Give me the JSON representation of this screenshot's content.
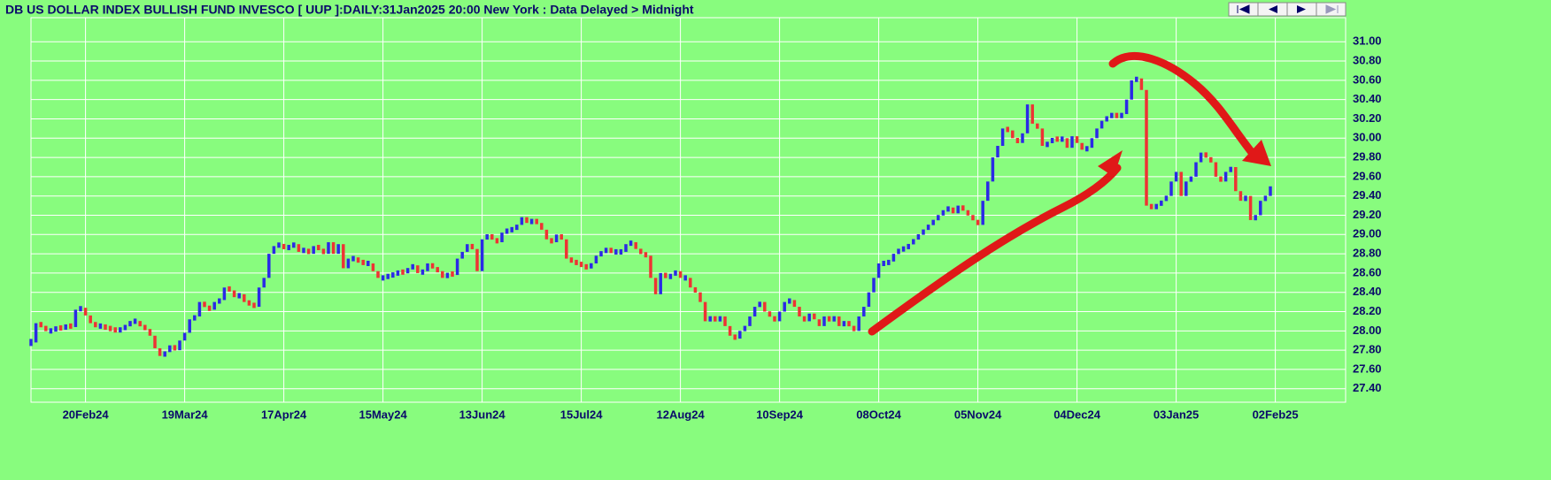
{
  "chart_data": {
    "type": "ohlc",
    "title": "DB US DOLLAR INDEX BULLISH FUND INVESCO [ UUP ]:DAILY:31Jan2025 20:00 New York : Data Delayed > Midnight",
    "categories": [
      null,
      null,
      null,
      null,
      null,
      null,
      null,
      null,
      null,
      null,
      null,
      "20Feb24",
      null,
      null,
      null,
      null,
      null,
      null,
      null,
      null,
      null,
      null,
      null,
      null,
      null,
      null,
      null,
      null,
      null,
      null,
      null,
      "19Mar24",
      null,
      null,
      null,
      null,
      null,
      null,
      null,
      null,
      null,
      null,
      null,
      null,
      null,
      null,
      null,
      null,
      null,
      null,
      null,
      "17Apr24",
      null,
      null,
      null,
      null,
      null,
      null,
      null,
      null,
      null,
      null,
      null,
      null,
      null,
      null,
      null,
      null,
      null,
      null,
      null,
      "15May24",
      null,
      null,
      null,
      null,
      null,
      null,
      null,
      null,
      null,
      null,
      null,
      null,
      null,
      null,
      null,
      null,
      null,
      null,
      null,
      "13Jun24",
      null,
      null,
      null,
      null,
      null,
      null,
      null,
      null,
      null,
      null,
      null,
      null,
      null,
      null,
      null,
      null,
      null,
      null,
      null,
      "15Jul24",
      null,
      null,
      null,
      null,
      null,
      null,
      null,
      null,
      null,
      null,
      null,
      null,
      null,
      null,
      null,
      null,
      null,
      null,
      null,
      "12Aug24",
      null,
      null,
      null,
      null,
      null,
      null,
      null,
      null,
      null,
      null,
      null,
      null,
      null,
      null,
      null,
      null,
      null,
      null,
      null,
      "10Sep24",
      null,
      null,
      null,
      null,
      null,
      null,
      null,
      null,
      null,
      null,
      null,
      null,
      null,
      null,
      null,
      null,
      null,
      null,
      null,
      "08Oct24",
      null,
      null,
      null,
      null,
      null,
      null,
      null,
      null,
      null,
      null,
      null,
      null,
      null,
      null,
      null,
      null,
      null,
      null,
      null,
      "05Nov24",
      null,
      null,
      null,
      null,
      null,
      null,
      null,
      null,
      null,
      null,
      null,
      null,
      null,
      null,
      null,
      null,
      null,
      null,
      null,
      "04Dec24",
      null,
      null,
      null,
      null,
      null,
      null,
      null,
      null,
      null,
      null,
      null,
      null,
      null,
      null,
      null,
      null,
      null,
      null,
      null,
      "03Jan25",
      null,
      null,
      null,
      null,
      null,
      null,
      null,
      null,
      null,
      null,
      null,
      null,
      null,
      null,
      null,
      null,
      null,
      null,
      null,
      "02Feb25"
    ],
    "values": [
      27.88,
      28.08,
      28.05,
      28.0,
      28.0,
      28.04,
      28.02,
      28.06,
      28.04,
      28.22,
      28.24,
      28.16,
      28.08,
      28.05,
      28.05,
      28.03,
      28.02,
      28.0,
      28.02,
      28.05,
      28.1,
      28.1,
      28.05,
      28.02,
      27.95,
      27.82,
      27.74,
      27.78,
      27.85,
      27.8,
      27.9,
      27.98,
      28.12,
      28.15,
      28.3,
      28.25,
      28.22,
      28.3,
      28.32,
      28.45,
      28.42,
      28.35,
      28.38,
      28.3,
      28.28,
      28.25,
      28.45,
      28.55,
      28.8,
      28.88,
      28.9,
      28.85,
      28.88,
      28.9,
      28.82,
      28.85,
      28.8,
      28.88,
      28.85,
      28.8,
      28.92,
      28.8,
      28.9,
      28.65,
      28.75,
      28.75,
      28.72,
      28.7,
      28.7,
      28.62,
      28.55,
      28.55,
      28.58,
      28.58,
      28.62,
      28.6,
      28.65,
      28.68,
      28.6,
      28.62,
      28.7,
      28.65,
      28.62,
      28.55,
      28.6,
      28.58,
      28.75,
      28.82,
      28.9,
      28.85,
      28.62,
      28.95,
      29.0,
      28.95,
      28.92,
      29.02,
      29.05,
      29.05,
      29.1,
      29.18,
      29.12,
      29.15,
      29.12,
      29.05,
      28.95,
      28.92,
      29.0,
      28.95,
      28.75,
      28.72,
      28.7,
      28.68,
      28.65,
      28.7,
      28.78,
      28.82,
      28.85,
      28.82,
      28.82,
      28.82,
      28.9,
      28.92,
      28.85,
      28.8,
      28.78,
      28.55,
      28.38,
      28.6,
      28.55,
      28.58,
      28.62,
      28.55,
      28.55,
      28.45,
      28.4,
      28.3,
      28.1,
      28.15,
      28.1,
      28.15,
      28.05,
      27.95,
      27.92,
      28.0,
      28.05,
      28.15,
      28.25,
      28.3,
      28.2,
      28.15,
      28.1,
      28.2,
      28.3,
      28.32,
      28.25,
      28.15,
      28.1,
      28.18,
      28.12,
      28.05,
      28.15,
      28.1,
      28.15,
      28.05,
      28.1,
      28.05,
      28.0,
      28.15,
      28.25,
      28.4,
      28.55,
      28.7,
      28.7,
      28.72,
      28.8,
      28.85,
      28.85,
      28.9,
      28.95,
      29.0,
      29.05,
      29.1,
      29.15,
      29.2,
      29.25,
      29.28,
      29.22,
      29.3,
      29.25,
      29.2,
      29.15,
      29.1,
      29.35,
      29.55,
      29.8,
      29.92,
      30.1,
      30.08,
      30.0,
      29.95,
      30.05,
      30.35,
      30.15,
      30.1,
      29.92,
      29.95,
      30.0,
      29.98,
      30.0,
      29.9,
      30.02,
      29.95,
      29.88,
      29.9,
      30.0,
      30.1,
      30.18,
      30.22,
      30.25,
      30.22,
      30.25,
      30.4,
      30.6,
      30.62,
      30.5,
      29.3,
      29.28,
      29.3,
      29.35,
      29.4,
      29.55,
      29.65,
      29.4,
      29.55,
      29.6,
      29.75,
      29.85,
      29.8,
      29.75,
      29.6,
      29.55,
      29.65,
      29.7,
      29.45,
      29.35,
      29.4,
      29.15,
      29.2,
      29.35,
      29.4,
      29.5,
      null
    ],
    "up_color": "#2a2ae6",
    "down_color": "#ee3333",
    "ylim": [
      27.26,
      31.25
    ],
    "yticks": [
      {
        "value": 27.4,
        "label": "27.40"
      },
      {
        "value": 27.6,
        "label": "27.60"
      },
      {
        "value": 27.8,
        "label": "27.80"
      },
      {
        "value": 28,
        "label": "28.00"
      },
      {
        "value": 28.2,
        "label": "28.20"
      },
      {
        "value": 28.4,
        "label": "28.40"
      },
      {
        "value": 28.6,
        "label": "28.60"
      },
      {
        "value": 28.8,
        "label": "28.80"
      },
      {
        "value": 29,
        "label": "29.00"
      },
      {
        "value": 29.2,
        "label": "29.20"
      },
      {
        "value": 29.4,
        "label": "29.40"
      },
      {
        "value": 29.6,
        "label": "29.60"
      },
      {
        "value": 29.8,
        "label": "29.80"
      },
      {
        "value": 30,
        "label": "30.00"
      },
      {
        "value": 30.2,
        "label": "30.20"
      },
      {
        "value": 30.4,
        "label": "30.40"
      },
      {
        "value": 30.6,
        "label": "30.60"
      },
      {
        "value": 30.8,
        "label": "30.80"
      },
      {
        "value": 31,
        "label": "31.00"
      }
    ],
    "grid": true
  }
}
